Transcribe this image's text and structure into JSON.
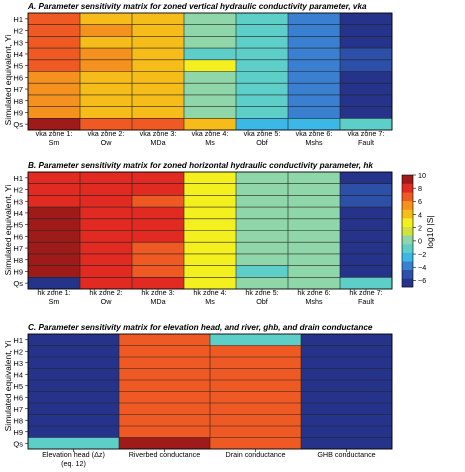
{
  "chart_data": [
    {
      "type": "heatmap",
      "title": "A. Parameter sensitivity matrix for zoned vertical hydraulic conductivity parameter, vka",
      "ylabel": "Simulated equivalent, Yi",
      "rows": [
        "H1",
        "H2",
        "H3",
        "H4",
        "H5",
        "H6",
        "H7",
        "H8",
        "H9",
        "Qs"
      ],
      "columns": [
        [
          "vka zone 1:",
          "Sm"
        ],
        [
          "vka zone 2:",
          "Ow"
        ],
        [
          "vka zone 3:",
          "MDa"
        ],
        [
          "vka zone 4:",
          "Ms"
        ],
        [
          "vka zone 5:",
          "Obf"
        ],
        [
          "vka zone 6:",
          "Mshs"
        ],
        [
          "vka zone 7:",
          "Fault"
        ]
      ],
      "values": [
        [
          6.5,
          4.5,
          4.5,
          0.5,
          -1.5,
          -3.5,
          -6
        ],
        [
          6.5,
          6.0,
          4.5,
          0.5,
          -1.5,
          -3.5,
          -6
        ],
        [
          6.5,
          4.5,
          4.5,
          0.5,
          -1.5,
          -3.5,
          -6
        ],
        [
          7.0,
          6.0,
          4.5,
          -0.5,
          -1.5,
          -3.5,
          -5
        ],
        [
          7.0,
          6.0,
          4.5,
          2.5,
          -1.5,
          -3.5,
          -5
        ],
        [
          6.0,
          4.5,
          4.5,
          0.5,
          -1.5,
          -3.5,
          -6
        ],
        [
          6.0,
          4.5,
          4.5,
          0.5,
          -1.5,
          -3.5,
          -6
        ],
        [
          6.0,
          4.5,
          4.5,
          0.5,
          -1.5,
          -3.5,
          -6
        ],
        [
          6.0,
          4.5,
          4.5,
          0.5,
          -1.5,
          -3.5,
          -6
        ],
        [
          9.0,
          6.5,
          6.5,
          4.0,
          -2.5,
          -2.5,
          -1.5
        ]
      ]
    },
    {
      "type": "heatmap",
      "title": "B. Parameter sensitivity matrix for zoned horizontal hydraulic conductivity parameter, hk",
      "ylabel": "Simulated equivalent, Yi",
      "rows": [
        "H1",
        "H2",
        "H3",
        "H4",
        "H5",
        "H6",
        "H7",
        "H8",
        "H9",
        "Qs"
      ],
      "columns": [
        [
          "hk zone 1:",
          "Sm"
        ],
        [
          "hk zone 2:",
          "Ow"
        ],
        [
          "hk zone 3:",
          "MDa"
        ],
        [
          "hk zone 4:",
          "Ms"
        ],
        [
          "hk zone 5:",
          "Obf"
        ],
        [
          "hk zone 6:",
          "Mshs"
        ],
        [
          "hk zone 7:",
          "Fault"
        ]
      ],
      "values": [
        [
          8.5,
          8.5,
          8.5,
          2.5,
          0.5,
          0.5,
          -6
        ],
        [
          8.5,
          8.5,
          8.5,
          2.5,
          0.5,
          0.5,
          -4.5
        ],
        [
          8.5,
          8.5,
          7.0,
          2.5,
          0.5,
          0.5,
          -4.5
        ],
        [
          9.0,
          8.5,
          8.5,
          2.5,
          0.5,
          0.5,
          -6
        ],
        [
          9.0,
          8.5,
          8.5,
          2.5,
          0.5,
          0.5,
          -6
        ],
        [
          9.0,
          8.5,
          8.5,
          2.5,
          0.5,
          0.5,
          -6
        ],
        [
          9.5,
          8.5,
          7.0,
          2.5,
          0.5,
          0.5,
          -6
        ],
        [
          9.0,
          8.5,
          7.0,
          2.5,
          0.5,
          0.5,
          -6
        ],
        [
          9.0,
          8.5,
          7.0,
          2.5,
          -0.5,
          0.5,
          -6
        ],
        [
          -6,
          8.5,
          8.5,
          2.5,
          0.5,
          0.5,
          -1.5
        ]
      ]
    },
    {
      "type": "heatmap",
      "title": "C. Parameter sensitivity matrix for elevation head, and river, ghb, and drain conductance",
      "ylabel": "Simulated equivalent, Yi",
      "rows": [
        "H1",
        "H2",
        "H3",
        "H4",
        "H5",
        "H6",
        "H7",
        "H8",
        "H9",
        "Qs"
      ],
      "columns": [
        [
          "Elevation head (Δz)",
          "(eq. 12)"
        ],
        [
          "Riverbed conductance",
          ""
        ],
        [
          "Drain conductance",
          ""
        ],
        [
          "GHB conductance",
          ""
        ]
      ],
      "values": [
        [
          -6,
          6.5,
          -1.5,
          -6
        ],
        [
          -6,
          6.5,
          6.5,
          -6
        ],
        [
          -6,
          6.5,
          6.5,
          -6
        ],
        [
          -6,
          6.5,
          6.5,
          -6
        ],
        [
          -6,
          6.5,
          6.5,
          -6
        ],
        [
          -6,
          6.5,
          6.5,
          -6
        ],
        [
          -6,
          6.5,
          6.5,
          -6
        ],
        [
          -6,
          6.5,
          6.5,
          -6
        ],
        [
          -6,
          6.5,
          6.5,
          -6
        ],
        [
          -1.5,
          9.5,
          6.5,
          -6
        ]
      ]
    }
  ],
  "colorbar": {
    "label": "log10 |S|",
    "ticks": [
      10,
      8,
      6,
      4,
      2,
      0,
      -2,
      -4,
      -6
    ],
    "range": [
      -7,
      10
    ],
    "colors": [
      "#26338a",
      "#2c4fa8",
      "#3a7fd0",
      "#3bb8e6",
      "#5ecfc8",
      "#8fd7a8",
      "#cfe33a",
      "#f4ef1e",
      "#f6bd1a",
      "#f5921f",
      "#ef5a24",
      "#e02a22",
      "#9e1b1a"
    ]
  }
}
